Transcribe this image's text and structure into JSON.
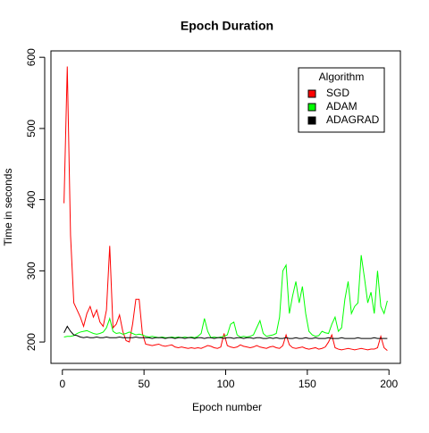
{
  "chart_data": {
    "type": "line",
    "title": "Epoch Duration",
    "x_label": "Epoch number",
    "y_label": "Time in seconds",
    "legend_title": "Algorithm",
    "legend_position": "top-right",
    "x": [
      1,
      3,
      5,
      7,
      9,
      11,
      13,
      15,
      17,
      19,
      21,
      23,
      25,
      27,
      29,
      31,
      33,
      35,
      37,
      39,
      41,
      43,
      45,
      47,
      49,
      51,
      53,
      55,
      57,
      59,
      61,
      63,
      65,
      67,
      69,
      71,
      73,
      75,
      77,
      79,
      81,
      83,
      85,
      87,
      89,
      91,
      93,
      95,
      97,
      99,
      101,
      103,
      105,
      107,
      109,
      111,
      113,
      115,
      117,
      119,
      121,
      123,
      125,
      127,
      129,
      131,
      133,
      135,
      137,
      139,
      141,
      143,
      145,
      147,
      149,
      151,
      153,
      155,
      157,
      159,
      161,
      163,
      165,
      167,
      169,
      171,
      173,
      175,
      177,
      179,
      181,
      183,
      185,
      187,
      189,
      191,
      193,
      195,
      197,
      199
    ],
    "series": [
      {
        "name": "SGD",
        "color": "#ff0000",
        "values": [
          395,
          587,
          350,
          255,
          245,
          235,
          222,
          240,
          250,
          235,
          245,
          228,
          222,
          245,
          335,
          220,
          225,
          238,
          215,
          202,
          200,
          225,
          260,
          260,
          212,
          197,
          196,
          195,
          196,
          197,
          195,
          194,
          195,
          196,
          193,
          192,
          193,
          192,
          191,
          192,
          191,
          192,
          191,
          193,
          195,
          194,
          192,
          191,
          193,
          212,
          195,
          193,
          192,
          193,
          196,
          194,
          193,
          192,
          193,
          195,
          193,
          192,
          191,
          193,
          194,
          192,
          191,
          195,
          210,
          196,
          192,
          191,
          192,
          193,
          191,
          190,
          191,
          192,
          190,
          191,
          193,
          200,
          210,
          192,
          190,
          189,
          190,
          191,
          190,
          189,
          190,
          191,
          190,
          189,
          190,
          190,
          192,
          208,
          192,
          188
        ]
      },
      {
        "name": "ADAM",
        "color": "#00ff00",
        "values": [
          207,
          208,
          208,
          209,
          212,
          214,
          215,
          216,
          214,
          212,
          211,
          212,
          214,
          220,
          233,
          215,
          212,
          213,
          211,
          212,
          214,
          212,
          210,
          211,
          210,
          208,
          207,
          208,
          207,
          206,
          207,
          206,
          206,
          207,
          206,
          207,
          206,
          207,
          206,
          207,
          206,
          208,
          212,
          233,
          215,
          206,
          207,
          206,
          207,
          208,
          210,
          225,
          228,
          210,
          207,
          208,
          207,
          208,
          210,
          220,
          230,
          212,
          208,
          209,
          210,
          212,
          235,
          300,
          308,
          240,
          265,
          285,
          255,
          278,
          240,
          215,
          210,
          208,
          209,
          215,
          213,
          212,
          225,
          235,
          215,
          220,
          260,
          285,
          240,
          250,
          255,
          322,
          290,
          255,
          270,
          240,
          300,
          250,
          240,
          258
        ]
      },
      {
        "name": "ADAGRAD",
        "color": "#000000",
        "values": [
          213,
          222,
          215,
          210,
          209,
          207,
          206,
          207,
          206,
          206,
          207,
          206,
          206,
          207,
          206,
          206,
          206,
          207,
          206,
          206,
          206,
          206,
          207,
          206,
          206,
          206,
          206,
          205,
          206,
          206,
          206,
          205,
          206,
          206,
          205,
          206,
          206,
          205,
          206,
          206,
          205,
          206,
          206,
          205,
          206,
          206,
          205,
          206,
          206,
          205,
          206,
          206,
          205,
          206,
          206,
          205,
          206,
          206,
          205,
          206,
          206,
          205,
          205,
          206,
          205,
          206,
          205,
          205,
          206,
          205,
          205,
          206,
          205,
          205,
          206,
          205,
          205,
          206,
          205,
          205,
          205,
          206,
          205,
          205,
          205,
          206,
          205,
          205,
          205,
          205,
          206,
          205,
          205,
          205,
          205,
          206,
          205,
          205,
          205,
          205
        ]
      }
    ],
    "xlim": [
      -7,
      207
    ],
    "ylim": [
      170,
      609
    ],
    "xticks": [
      0,
      50,
      100,
      150,
      200
    ],
    "yticks": [
      200,
      300,
      400,
      500,
      600
    ]
  }
}
